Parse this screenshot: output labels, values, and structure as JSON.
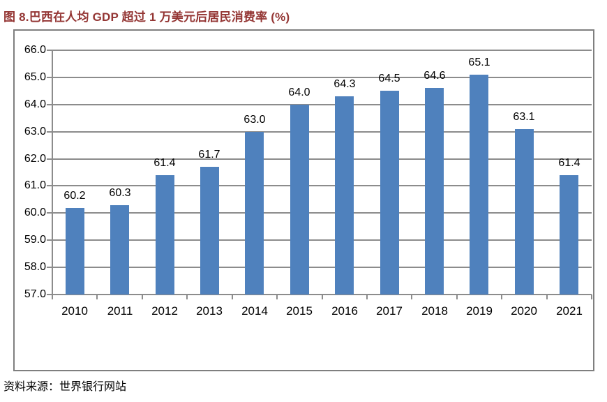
{
  "figure": {
    "title": "图 8.巴西在人均 GDP 超过 1 万美元后居民消费率 (%)",
    "source": "资料来源：世界银行网站"
  },
  "chart_data": {
    "type": "bar",
    "title": "图 8.巴西在人均 GDP 超过 1 万美元后居民消费率 (%)",
    "categories": [
      "2010",
      "2011",
      "2012",
      "2013",
      "2014",
      "2015",
      "2016",
      "2017",
      "2018",
      "2019",
      "2020",
      "2021"
    ],
    "values": [
      60.2,
      60.3,
      61.4,
      61.7,
      63.0,
      64.0,
      64.3,
      64.5,
      64.6,
      65.1,
      63.1,
      61.4
    ],
    "data_labels": [
      "60.2",
      "60.3",
      "61.4",
      "61.7",
      "63.0",
      "64.0",
      "64.3",
      "64.5",
      "64.6",
      "65.1",
      "63.1",
      "61.4"
    ],
    "xlabel": "",
    "ylabel": "",
    "ylim": [
      57.0,
      66.0
    ],
    "ytick_step": 1.0,
    "ytick_labels": [
      "57.0",
      "58.0",
      "59.0",
      "60.0",
      "61.0",
      "62.0",
      "63.0",
      "64.0",
      "65.0",
      "66.0"
    ],
    "grid": true,
    "legend": "none",
    "source": "资料来源：世界银行网站",
    "colors": {
      "bar": "#4F81BD",
      "grid": "#8C8C8C",
      "axis": "#8C8C8C",
      "frame_border": "#7F7F7F",
      "title_text": "#943634",
      "label_text": "#000000",
      "background": "#FFFFFF"
    }
  }
}
